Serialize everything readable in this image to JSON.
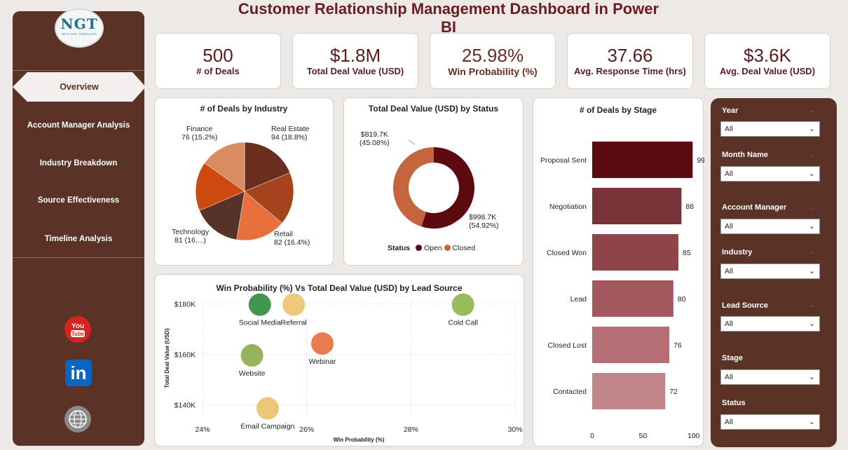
{
  "title": "Customer Relationship Management Dashboard in Power BI",
  "logo": {
    "text": "NGT",
    "subtext": "NEXT GEN TEMPLATES"
  },
  "nav": {
    "active": "Overview",
    "items": [
      "Account Manager Analysis",
      "Industry Breakdown",
      "Source Effectiveness",
      "Timeline Analysis"
    ]
  },
  "social": [
    {
      "name": "youtube-icon",
      "text": "You Tube",
      "color": "#d7231f"
    },
    {
      "name": "linkedin-icon",
      "text": "in",
      "color": "#0a66c2"
    },
    {
      "name": "website-icon",
      "text": "WWW",
      "color": "#8a8a8a"
    }
  ],
  "kpis": [
    {
      "value": "500",
      "label": "# of Deals"
    },
    {
      "value": "$1.8M",
      "label": "Total Deal Value (USD)"
    },
    {
      "value": "25.98%",
      "label": "Win Probability (%)"
    },
    {
      "value": "37.66",
      "label": "Avg. Response Time (hrs)"
    },
    {
      "value": "$3.6K",
      "label": "Avg. Deal Value (USD)"
    }
  ],
  "charts": {
    "industry": {
      "title": "# of Deals by Industry"
    },
    "status": {
      "title": "Total Deal Value (USD) by Status"
    },
    "stage": {
      "title": "# of Deals by Stage"
    },
    "scatter": {
      "title": "Win Probability (%) Vs Total Deal Value (USD) by Lead Source"
    }
  },
  "chart_data": [
    {
      "type": "pie",
      "title": "# of Deals by Industry",
      "slices": [
        {
          "label": "Real Estate",
          "value": 94,
          "display": "94 (18.8%)",
          "color": "#6b2e1e"
        },
        {
          "label": "Slice 2",
          "value": 87,
          "display": "",
          "color": "#a4431e"
        },
        {
          "label": "Retail",
          "value": 82,
          "display": "82 (16.4%)",
          "color": "#e8703f"
        },
        {
          "label": "Slice 4",
          "value": 80,
          "display": "",
          "color": "#573228"
        },
        {
          "label": "Technology",
          "value": 81,
          "display": "81 (16....)",
          "color": "#cc4a10"
        },
        {
          "label": "Finance",
          "value": 76,
          "display": "76 (15.2%)",
          "color": "#d98c5f"
        }
      ]
    },
    {
      "type": "pie",
      "title": "Total Deal Value (USD) by Status",
      "donut": true,
      "legend_title": "Status",
      "slices": [
        {
          "label": "Open",
          "value": 998.7,
          "display": "$998.7K",
          "pct": "(54.92%)",
          "color": "#5c0a0f"
        },
        {
          "label": "Closed",
          "value": 819.7,
          "display": "$819.7K",
          "pct": "(45.08%)",
          "color": "#c4653e"
        }
      ]
    },
    {
      "type": "bar",
      "orientation": "horizontal",
      "title": "# of Deals by Stage",
      "categories": [
        "Proposal Sent",
        "Negotiation",
        "Closed Won",
        "Lead",
        "Closed Lost",
        "Contacted"
      ],
      "values": [
        99,
        88,
        85,
        80,
        76,
        72
      ],
      "colors": [
        "#5b0a0f",
        "#7a3438",
        "#8e4449",
        "#a2585d",
        "#b46f74",
        "#c2858a"
      ],
      "xticks": [
        "0",
        "50",
        "100"
      ],
      "xlim": [
        0,
        105
      ]
    },
    {
      "type": "scatter",
      "title": "Win Probability (%) Vs Total Deal Value (USD) by Lead Source",
      "xlabel": "Win Probability (%)",
      "ylabel": "Total Deal Value (USD)",
      "xlim": [
        24,
        30
      ],
      "ylim": [
        136,
        181
      ],
      "xticks": [
        "24%",
        "26%",
        "28%",
        "30%"
      ],
      "yticks": [
        "$180K",
        "$160K",
        "$140K"
      ],
      "points": [
        {
          "label": "Social Media",
          "x": 25.1,
          "y": 179.7,
          "color": "#2e8b3a"
        },
        {
          "label": "Referral",
          "x": 25.75,
          "y": 179.7,
          "color": "#eec170"
        },
        {
          "label": "Cold Call",
          "x": 29.0,
          "y": 179.7,
          "color": "#8db44a"
        },
        {
          "label": "Webinar",
          "x": 26.3,
          "y": 164.3,
          "color": "#e86b3c"
        },
        {
          "label": "Website",
          "x": 24.95,
          "y": 159.6,
          "color": "#8aab4a"
        },
        {
          "label": "Email Campaign",
          "x": 25.25,
          "y": 138.6,
          "color": "#ebc06c"
        }
      ]
    }
  ],
  "filters": [
    {
      "label": "Year",
      "value": "All"
    },
    {
      "label": "Month Name",
      "value": "All"
    },
    {
      "label": "Account Manager",
      "value": "All"
    },
    {
      "label": "Industry",
      "value": "All"
    },
    {
      "label": "Lead Source",
      "value": "All"
    },
    {
      "label": "Stage",
      "value": "All"
    },
    {
      "label": "Status",
      "value": "All"
    }
  ]
}
